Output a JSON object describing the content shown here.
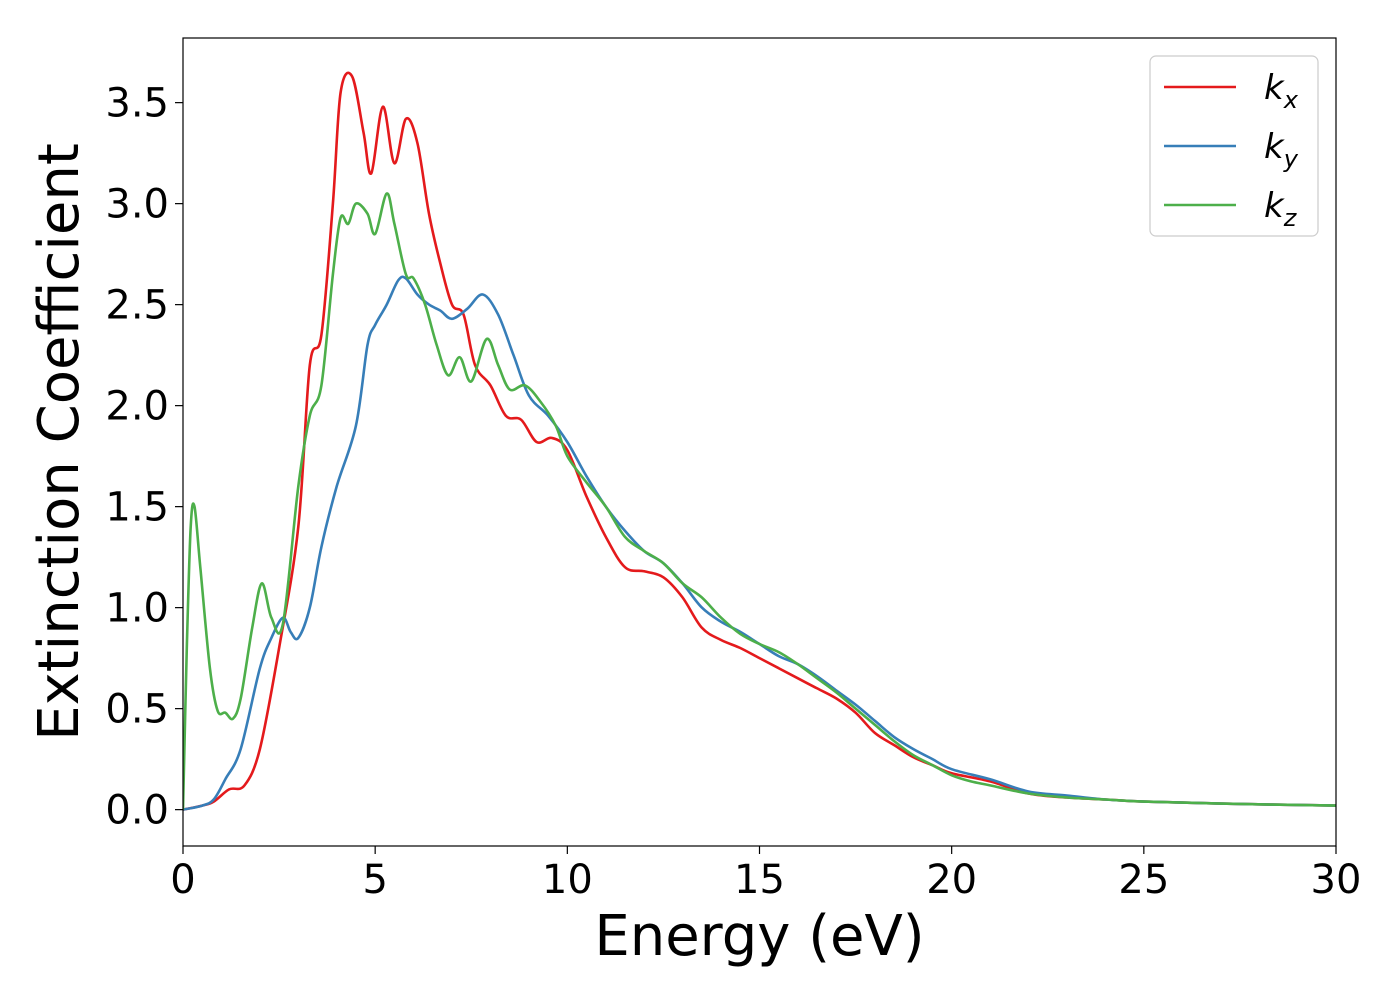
{
  "chart_data": {
    "type": "line",
    "xlabel": "Energy (eV)",
    "ylabel": "Extinction Coefficient",
    "xlim": [
      0,
      30
    ],
    "ylim": [
      -0.18,
      3.82
    ],
    "xticks": [
      0,
      5,
      10,
      15,
      20,
      25,
      30
    ],
    "xtick_labels": [
      "0",
      "5",
      "10",
      "15",
      "20",
      "25",
      "30"
    ],
    "yticks": [
      0.0,
      0.5,
      1.0,
      1.5,
      2.0,
      2.5,
      3.0,
      3.5
    ],
    "ytick_labels": [
      "0.0",
      "0.5",
      "1.0",
      "1.5",
      "2.0",
      "2.5",
      "3.0",
      "3.5"
    ],
    "grid": false,
    "legend_position": "top-right",
    "series": [
      {
        "name": "k",
        "subscript": "x",
        "color": "#e41a1c",
        "x": [
          0,
          0.5,
          0.8,
          1.2,
          1.6,
          2.0,
          2.5,
          3.0,
          3.3,
          3.6,
          3.9,
          4.1,
          4.4,
          4.7,
          4.9,
          5.2,
          5.5,
          5.8,
          6.1,
          6.4,
          6.7,
          7.0,
          7.3,
          7.6,
          8.0,
          8.4,
          8.8,
          9.2,
          9.6,
          10.0,
          10.5,
          11.0,
          11.5,
          12.0,
          12.5,
          13.0,
          13.5,
          14.0,
          14.5,
          15.0,
          15.5,
          16.0,
          16.5,
          17.0,
          17.5,
          18.0,
          18.5,
          19.0,
          19.5,
          20.0,
          21.0,
          22.0,
          23.0,
          24.0,
          25.0,
          27.0,
          30.0
        ],
        "y": [
          0.0,
          0.02,
          0.04,
          0.1,
          0.12,
          0.3,
          0.8,
          1.4,
          2.2,
          2.35,
          3.0,
          3.55,
          3.63,
          3.35,
          3.15,
          3.48,
          3.2,
          3.42,
          3.3,
          2.95,
          2.7,
          2.5,
          2.45,
          2.2,
          2.1,
          1.95,
          1.93,
          1.82,
          1.84,
          1.78,
          1.55,
          1.35,
          1.2,
          1.18,
          1.15,
          1.05,
          0.9,
          0.84,
          0.8,
          0.75,
          0.7,
          0.65,
          0.6,
          0.55,
          0.48,
          0.38,
          0.32,
          0.26,
          0.22,
          0.18,
          0.14,
          0.08,
          0.06,
          0.05,
          0.04,
          0.03,
          0.02
        ]
      },
      {
        "name": "k",
        "subscript": "y",
        "color": "#377eb8",
        "x": [
          0,
          0.5,
          0.8,
          1.1,
          1.5,
          2.0,
          2.3,
          2.6,
          2.8,
          3.0,
          3.3,
          3.6,
          4.0,
          4.5,
          4.8,
          5.0,
          5.3,
          5.6,
          5.8,
          6.1,
          6.4,
          6.7,
          7.0,
          7.4,
          7.8,
          8.2,
          8.6,
          9.0,
          9.5,
          10.0,
          10.5,
          11.0,
          11.5,
          12.0,
          12.5,
          13.0,
          13.5,
          14.0,
          14.5,
          15.0,
          15.5,
          16.0,
          16.5,
          17.0,
          17.5,
          18.0,
          18.5,
          19.0,
          19.5,
          20.0,
          21.0,
          22.0,
          23.0,
          24.0,
          25.0,
          27.0,
          30.0
        ],
        "y": [
          0.0,
          0.02,
          0.05,
          0.15,
          0.3,
          0.7,
          0.85,
          0.95,
          0.88,
          0.85,
          1.0,
          1.3,
          1.6,
          1.9,
          2.3,
          2.4,
          2.5,
          2.62,
          2.63,
          2.55,
          2.5,
          2.47,
          2.43,
          2.48,
          2.55,
          2.45,
          2.25,
          2.05,
          1.95,
          1.82,
          1.65,
          1.5,
          1.38,
          1.28,
          1.22,
          1.12,
          1.0,
          0.93,
          0.88,
          0.82,
          0.76,
          0.72,
          0.66,
          0.59,
          0.52,
          0.44,
          0.36,
          0.3,
          0.25,
          0.2,
          0.15,
          0.09,
          0.07,
          0.05,
          0.04,
          0.03,
          0.02
        ]
      },
      {
        "name": "k",
        "subscript": "z",
        "color": "#4daf4a",
        "x": [
          0,
          0.1,
          0.2,
          0.3,
          0.45,
          0.7,
          0.9,
          1.1,
          1.3,
          1.5,
          1.8,
          2.05,
          2.3,
          2.6,
          3.0,
          3.3,
          3.6,
          3.9,
          4.1,
          4.3,
          4.5,
          4.8,
          5.0,
          5.3,
          5.5,
          5.8,
          6.0,
          6.3,
          6.6,
          6.9,
          7.2,
          7.5,
          7.9,
          8.2,
          8.5,
          8.9,
          9.3,
          9.7,
          10.0,
          10.5,
          11.0,
          11.5,
          12.0,
          12.5,
          13.0,
          13.5,
          14.0,
          14.5,
          15.0,
          15.5,
          16.0,
          16.5,
          17.0,
          17.5,
          18.0,
          18.5,
          19.0,
          19.5,
          20.0,
          20.5,
          21.0,
          22.0,
          23.0,
          24.0,
          25.0,
          27.0,
          30.0
        ],
        "y": [
          0.0,
          0.8,
          1.4,
          1.5,
          1.2,
          0.7,
          0.49,
          0.48,
          0.45,
          0.55,
          0.9,
          1.12,
          0.95,
          0.92,
          1.6,
          1.95,
          2.1,
          2.65,
          2.93,
          2.9,
          3.0,
          2.95,
          2.85,
          3.05,
          2.9,
          2.65,
          2.63,
          2.5,
          2.3,
          2.15,
          2.24,
          2.12,
          2.33,
          2.2,
          2.08,
          2.1,
          2.02,
          1.9,
          1.75,
          1.62,
          1.5,
          1.35,
          1.28,
          1.22,
          1.12,
          1.05,
          0.95,
          0.87,
          0.82,
          0.78,
          0.72,
          0.65,
          0.58,
          0.5,
          0.42,
          0.34,
          0.27,
          0.22,
          0.17,
          0.14,
          0.12,
          0.08,
          0.06,
          0.05,
          0.04,
          0.03,
          0.02
        ]
      }
    ]
  }
}
